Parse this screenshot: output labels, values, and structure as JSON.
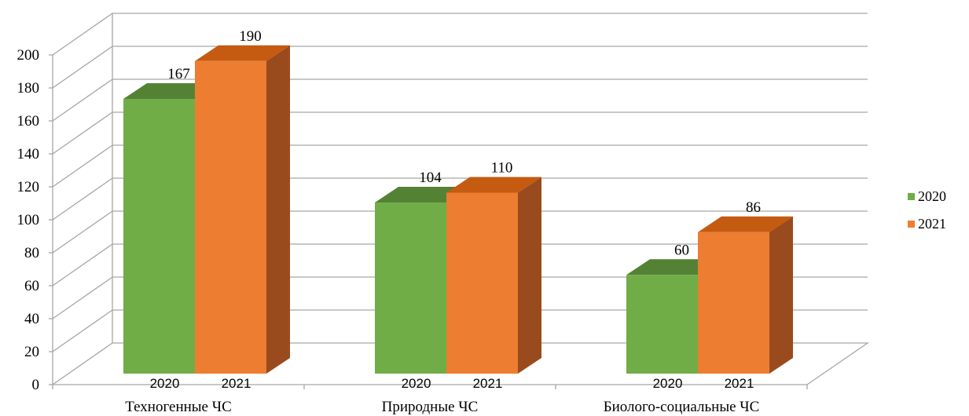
{
  "chart_data": {
    "type": "bar",
    "title": "",
    "xlabel": "",
    "ylabel": "",
    "ylim": [
      0,
      200
    ],
    "y_ticks": [
      "0",
      "20",
      "40",
      "60",
      "80",
      "100",
      "120",
      "140",
      "160",
      "180",
      "200"
    ],
    "grid": true,
    "three_d": true,
    "legend_position": "right",
    "categories": [
      "Техногенные ЧС",
      "Природные ЧС",
      "Биолого-социальные ЧС"
    ],
    "series": [
      {
        "name": "2020",
        "values": [
          167,
          104,
          60
        ],
        "color": "#70AD47"
      },
      {
        "name": "2021",
        "values": [
          190,
          110,
          86
        ],
        "color": "#ED7D31"
      }
    ],
    "bar_year_labels": [
      "2020",
      "2021"
    ],
    "colors": {
      "green_front": "#70AD47",
      "green_top": "#548235",
      "green_side": "#4E7A31",
      "orange_front": "#ED7D31",
      "orange_top": "#C55A11",
      "orange_side": "#9A4B1D",
      "grid": "#A6A6A6"
    }
  }
}
